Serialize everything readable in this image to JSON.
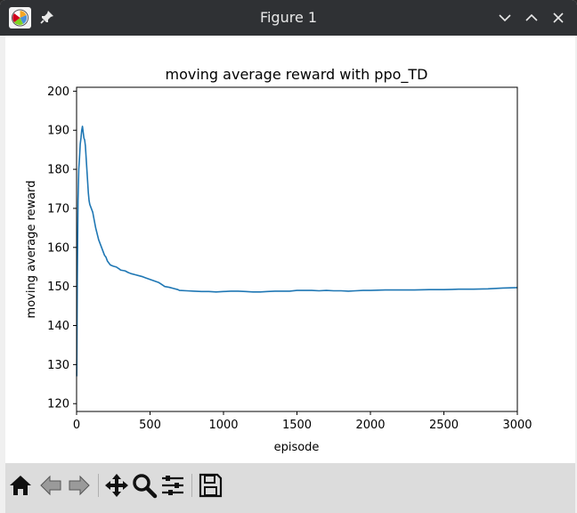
{
  "window": {
    "title": "Figure 1",
    "app_icon": "matplotlib-figure-icon",
    "pin_icon": "pin-icon",
    "controls": [
      "minimize-icon",
      "maximize-icon",
      "close-icon"
    ]
  },
  "toolbar": {
    "buttons": [
      {
        "name": "home",
        "icon": "home-icon"
      },
      {
        "name": "back",
        "icon": "arrow-left-icon"
      },
      {
        "name": "forward",
        "icon": "arrow-right-icon"
      },
      {
        "name": "pan",
        "icon": "move-icon"
      },
      {
        "name": "zoom",
        "icon": "zoom-icon"
      },
      {
        "name": "configure-subplots",
        "icon": "sliders-icon"
      },
      {
        "name": "save",
        "icon": "save-icon"
      }
    ]
  },
  "chart_data": {
    "type": "line",
    "title": "moving average reward with ppo_TD",
    "xlabel": "episode",
    "ylabel": "moving average reward",
    "xlim": [
      0,
      3000
    ],
    "ylim": [
      118,
      201
    ],
    "xticks": [
      0,
      500,
      1000,
      1500,
      2000,
      2500,
      3000
    ],
    "yticks": [
      120,
      130,
      140,
      150,
      160,
      170,
      180,
      190,
      200
    ],
    "grid": false,
    "color": "#1f77b4",
    "series": [
      {
        "points": [
          [
            1,
            127
          ],
          [
            5,
            152
          ],
          [
            10,
            172
          ],
          [
            15,
            180
          ],
          [
            20,
            183
          ],
          [
            25,
            186.5
          ],
          [
            30,
            188
          ],
          [
            35,
            190
          ],
          [
            40,
            191
          ],
          [
            45,
            189.5
          ],
          [
            50,
            188
          ],
          [
            55,
            187.5
          ],
          [
            60,
            186
          ],
          [
            65,
            183
          ],
          [
            70,
            180
          ],
          [
            75,
            177
          ],
          [
            80,
            174
          ],
          [
            85,
            172
          ],
          [
            90,
            171
          ],
          [
            100,
            170
          ],
          [
            110,
            169
          ],
          [
            120,
            167
          ],
          [
            130,
            165
          ],
          [
            140,
            163.5
          ],
          [
            150,
            162
          ],
          [
            160,
            161
          ],
          [
            170,
            160
          ],
          [
            180,
            159
          ],
          [
            190,
            158
          ],
          [
            200,
            157.5
          ],
          [
            210,
            156.5
          ],
          [
            220,
            156
          ],
          [
            230,
            155.5
          ],
          [
            250,
            155.2
          ],
          [
            270,
            155
          ],
          [
            290,
            154.5
          ],
          [
            300,
            154.2
          ],
          [
            330,
            154
          ],
          [
            350,
            153.6
          ],
          [
            370,
            153.3
          ],
          [
            400,
            153
          ],
          [
            430,
            152.7
          ],
          [
            450,
            152.5
          ],
          [
            470,
            152.2
          ],
          [
            500,
            151.8
          ],
          [
            530,
            151.4
          ],
          [
            560,
            151
          ],
          [
            580,
            150.5
          ],
          [
            600,
            150
          ],
          [
            630,
            149.8
          ],
          [
            660,
            149.5
          ],
          [
            690,
            149.2
          ],
          [
            700,
            149
          ],
          [
            750,
            148.9
          ],
          [
            800,
            148.8
          ],
          [
            850,
            148.7
          ],
          [
            900,
            148.7
          ],
          [
            950,
            148.6
          ],
          [
            1000,
            148.7
          ],
          [
            1050,
            148.8
          ],
          [
            1100,
            148.8
          ],
          [
            1150,
            148.7
          ],
          [
            1200,
            148.6
          ],
          [
            1250,
            148.6
          ],
          [
            1300,
            148.7
          ],
          [
            1350,
            148.8
          ],
          [
            1400,
            148.8
          ],
          [
            1450,
            148.8
          ],
          [
            1500,
            149
          ],
          [
            1550,
            149
          ],
          [
            1600,
            149
          ],
          [
            1650,
            148.9
          ],
          [
            1700,
            149
          ],
          [
            1750,
            148.9
          ],
          [
            1800,
            148.9
          ],
          [
            1850,
            148.8
          ],
          [
            1900,
            148.9
          ],
          [
            1950,
            149
          ],
          [
            2000,
            149
          ],
          [
            2100,
            149.1
          ],
          [
            2200,
            149.1
          ],
          [
            2300,
            149.1
          ],
          [
            2400,
            149.2
          ],
          [
            2500,
            149.2
          ],
          [
            2600,
            149.3
          ],
          [
            2700,
            149.3
          ],
          [
            2800,
            149.4
          ],
          [
            2900,
            149.6
          ],
          [
            3000,
            149.7
          ]
        ]
      }
    ]
  }
}
